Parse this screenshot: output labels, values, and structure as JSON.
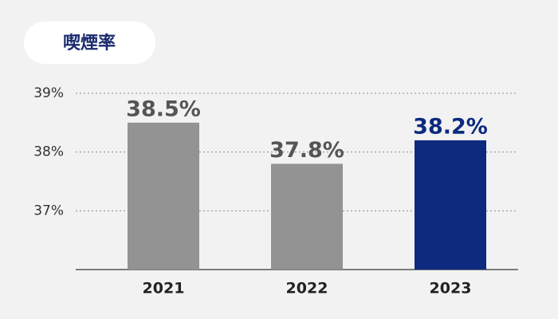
{
  "chart_data": {
    "type": "bar",
    "title": "喫煙率",
    "categories": [
      "2021",
      "2022",
      "2023"
    ],
    "values": [
      38.5,
      37.8,
      38.2
    ],
    "value_labels": [
      "38.5%",
      "37.8%",
      "38.2%"
    ],
    "colors": [
      "#939393",
      "#939393",
      "#0d2a7f"
    ],
    "label_colors": [
      "#555555",
      "#555555",
      "#0d2a7f"
    ],
    "ylim": [
      36,
      39
    ],
    "yticks": [
      {
        "value": 37,
        "label": "37%"
      },
      {
        "value": 38,
        "label": "38%"
      },
      {
        "value": 39,
        "label": "39%"
      }
    ],
    "grid": true
  }
}
